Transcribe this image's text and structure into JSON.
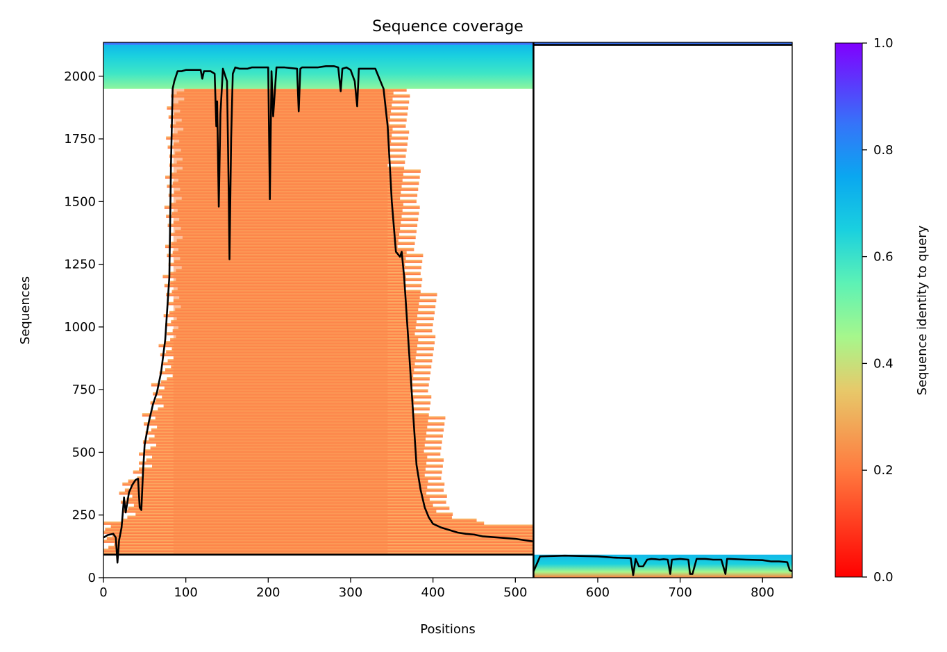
{
  "chart_data": {
    "type": "heatmap",
    "title": "Sequence coverage",
    "xlabel": "Positions",
    "ylabel": "Sequences",
    "xlim": [
      0,
      836
    ],
    "ylim": [
      0,
      2135
    ],
    "xticks": [
      0,
      100,
      200,
      300,
      400,
      500,
      600,
      700,
      800
    ],
    "yticks": [
      0,
      250,
      500,
      750,
      1000,
      1250,
      1500,
      1750,
      2000
    ],
    "colorbar": {
      "label": "Sequence identity to query",
      "range": [
        0.0,
        1.0
      ],
      "ticks": [
        "0.0",
        "0.2",
        "0.4",
        "0.6",
        "0.8",
        "1.0"
      ],
      "colormap": "rainbow"
    },
    "chain_boundary": {
      "position": 522,
      "sequences_chain1": 2125,
      "sequences_chain2": 92
    },
    "coverage_line": {
      "x": [
        0,
        5,
        12,
        15,
        17,
        19,
        22,
        25,
        27,
        29,
        31,
        35,
        39,
        42,
        44,
        46,
        48,
        50,
        55,
        60,
        65,
        70,
        75,
        80,
        82,
        84,
        86,
        90,
        95,
        100,
        110,
        118,
        120,
        122,
        130,
        135,
        137,
        138,
        140,
        142,
        145,
        150,
        152,
        153,
        155,
        157,
        160,
        165,
        170,
        175,
        180,
        190,
        200,
        202,
        204,
        206,
        210,
        220,
        235,
        237,
        239,
        241,
        250,
        260,
        270,
        280,
        285,
        288,
        290,
        295,
        300,
        305,
        308,
        310,
        315,
        320,
        330,
        335,
        340,
        345,
        350,
        355,
        360,
        362,
        365,
        370,
        375,
        380,
        385,
        390,
        395,
        400,
        410,
        420,
        430,
        440,
        450,
        460,
        480,
        500,
        521
      ],
      "y": [
        160,
        170,
        175,
        160,
        60,
        150,
        200,
        320,
        260,
        300,
        340,
        370,
        390,
        395,
        280,
        270,
        420,
        530,
        620,
        690,
        740,
        820,
        950,
        1200,
        1650,
        1950,
        1980,
        2020,
        2020,
        2025,
        2025,
        2025,
        1990,
        2020,
        2020,
        2010,
        1800,
        1900,
        1480,
        1850,
        2030,
        1980,
        1550,
        1270,
        1750,
        2010,
        2035,
        2030,
        2030,
        2030,
        2035,
        2035,
        2035,
        1510,
        2020,
        1840,
        2035,
        2035,
        2030,
        1860,
        2030,
        2035,
        2035,
        2035,
        2040,
        2040,
        2035,
        1940,
        2030,
        2035,
        2025,
        1980,
        1880,
        2030,
        2030,
        2030,
        2030,
        1990,
        1950,
        1800,
        1500,
        1300,
        1280,
        1300,
        1200,
        950,
        700,
        450,
        350,
        280,
        240,
        215,
        200,
        190,
        180,
        175,
        172,
        165,
        160,
        155,
        145
      ]
    },
    "coverage_line_chain2": {
      "x": [
        522,
        530,
        560,
        600,
        620,
        640,
        643,
        646,
        650,
        655,
        660,
        665,
        670,
        675,
        680,
        685,
        688,
        690,
        700,
        710,
        712,
        715,
        720,
        730,
        740,
        750,
        755,
        757,
        760,
        780,
        800,
        810,
        820,
        830,
        833,
        836
      ],
      "y": [
        25,
        85,
        88,
        85,
        80,
        78,
        10,
        75,
        45,
        45,
        72,
        75,
        74,
        72,
        74,
        72,
        15,
        72,
        75,
        72,
        15,
        15,
        75,
        75,
        72,
        72,
        15,
        75,
        75,
        72,
        70,
        65,
        65,
        62,
        30,
        25
      ]
    }
  }
}
